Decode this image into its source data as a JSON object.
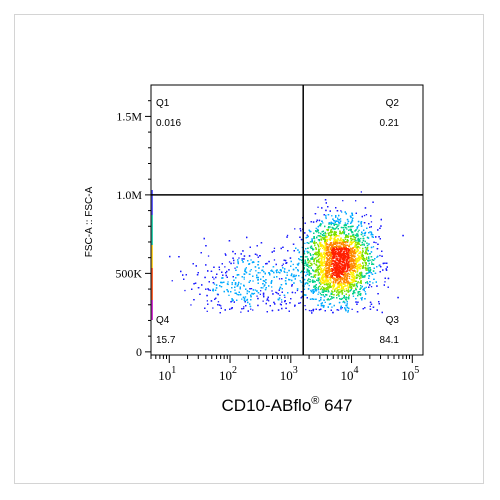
{
  "chart_data": {
    "type": "scatter",
    "subtype": "flow-cytometry-density",
    "xlabel": "CD10-ABflo",
    "xlabel_superscript": "®",
    "xlabel_suffix": " 647",
    "ylabel": "FSC-A :: FSC-A",
    "x_scale": "log",
    "xlim": [
      5,
      150000
    ],
    "x_ticks": [
      {
        "value": 10,
        "base": "10",
        "exp": "1"
      },
      {
        "value": 100,
        "base": "10",
        "exp": "2"
      },
      {
        "value": 1000,
        "base": "10",
        "exp": "3"
      },
      {
        "value": 10000,
        "base": "10",
        "exp": "4"
      },
      {
        "value": 100000,
        "base": "10",
        "exp": "5"
      }
    ],
    "y_scale": "linear",
    "ylim": [
      -20000,
      1700000
    ],
    "y_ticks": [
      {
        "value": 0,
        "label": "0"
      },
      {
        "value": 500000,
        "label": "500K"
      },
      {
        "value": 1000000,
        "label": "1.0M"
      },
      {
        "value": 1500000,
        "label": "1.5M"
      }
    ],
    "gates": {
      "x": 1600,
      "y": 1000000
    },
    "quadrants": [
      {
        "name": "Q1",
        "value": "0.016",
        "position": "top-left"
      },
      {
        "name": "Q2",
        "value": "0.21",
        "position": "top-right"
      },
      {
        "name": "Q3",
        "value": "84.1",
        "position": "bottom-right"
      },
      {
        "name": "Q4",
        "value": "15.7",
        "position": "bottom-left"
      }
    ],
    "populations": [
      {
        "name": "main",
        "center_x": 6000,
        "center_y": 580000,
        "spread_log_x": 0.28,
        "spread_y": 130000,
        "fraction": 0.84
      },
      {
        "name": "negative",
        "center_x": 250,
        "center_y": 450000,
        "spread_log_x": 0.55,
        "spread_y": 110000,
        "fraction": 0.16
      }
    ],
    "density_colors": [
      "#1a1aff",
      "#00aaff",
      "#00d08a",
      "#7ee000",
      "#ffee00",
      "#ff8800",
      "#ff2000"
    ],
    "grid": false,
    "legend": "none"
  }
}
